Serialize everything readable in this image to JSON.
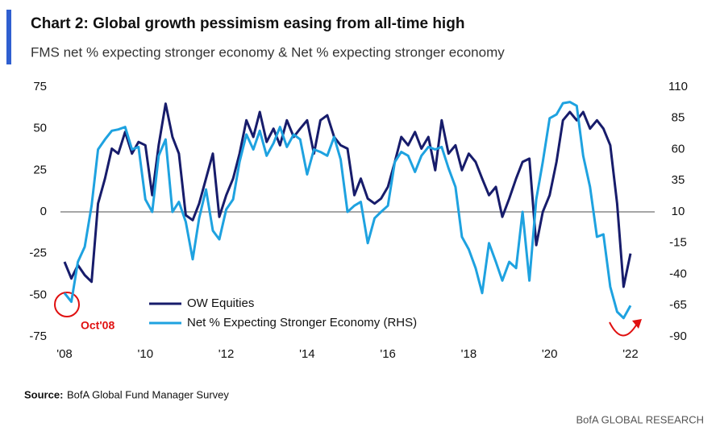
{
  "chart_data": {
    "type": "line",
    "title": "Chart 2: Global growth pessimism easing from all-time high",
    "subtitle": "FMS net % expecting stronger economy & Net % expecting stronger economy",
    "x": [
      2008.0,
      2008.17,
      2008.33,
      2008.5,
      2008.67,
      2008.83,
      2009.0,
      2009.17,
      2009.33,
      2009.5,
      2009.67,
      2009.83,
      2010.0,
      2010.17,
      2010.33,
      2010.5,
      2010.67,
      2010.83,
      2011.0,
      2011.17,
      2011.33,
      2011.5,
      2011.67,
      2011.83,
      2012.0,
      2012.17,
      2012.33,
      2012.5,
      2012.67,
      2012.83,
      2013.0,
      2013.17,
      2013.33,
      2013.5,
      2013.67,
      2013.83,
      2014.0,
      2014.17,
      2014.33,
      2014.5,
      2014.67,
      2014.83,
      2015.0,
      2015.17,
      2015.33,
      2015.5,
      2015.67,
      2015.83,
      2016.0,
      2016.17,
      2016.33,
      2016.5,
      2016.67,
      2016.83,
      2017.0,
      2017.17,
      2017.33,
      2017.5,
      2017.67,
      2017.83,
      2018.0,
      2018.17,
      2018.33,
      2018.5,
      2018.67,
      2018.83,
      2019.0,
      2019.17,
      2019.33,
      2019.5,
      2019.67,
      2019.83,
      2020.0,
      2020.17,
      2020.33,
      2020.5,
      2020.67,
      2020.83,
      2021.0,
      2021.17,
      2021.33,
      2021.5,
      2021.67,
      2021.83,
      2022.0
    ],
    "series": [
      {
        "name": "OW Equities",
        "color": "#171c6b",
        "values": [
          -30,
          -40,
          -32,
          -38,
          -42,
          5,
          20,
          38,
          35,
          48,
          35,
          42,
          40,
          10,
          40,
          65,
          45,
          35,
          -2,
          -5,
          5,
          20,
          35,
          -3,
          10,
          20,
          35,
          55,
          45,
          60,
          42,
          50,
          40,
          55,
          45,
          50,
          55,
          35,
          55,
          58,
          45,
          40,
          38,
          10,
          20,
          8,
          5,
          8,
          15,
          30,
          45,
          40,
          48,
          38,
          45,
          25,
          55,
          35,
          40,
          25,
          35,
          30,
          20,
          10,
          15,
          -3,
          8,
          20,
          30,
          32,
          -20,
          0,
          10,
          30,
          55,
          60,
          55,
          60,
          50,
          55,
          50,
          40,
          5,
          -45,
          -25
        ]
      },
      {
        "name": "Net % Expecting Stronger Economy (RHS)",
        "color": "#1ea2e0",
        "axis": "y2",
        "values": [
          -55,
          -62,
          -30,
          -18,
          15,
          60,
          68,
          75,
          76,
          78,
          60,
          62,
          20,
          10,
          55,
          68,
          10,
          18,
          2,
          -28,
          5,
          28,
          -5,
          -12,
          12,
          20,
          50,
          72,
          60,
          75,
          55,
          65,
          78,
          62,
          72,
          68,
          40,
          60,
          58,
          55,
          70,
          52,
          10,
          15,
          18,
          -15,
          5,
          10,
          15,
          50,
          58,
          55,
          42,
          55,
          62,
          60,
          62,
          45,
          30,
          -10,
          -20,
          -35,
          -55,
          -15,
          -30,
          -45,
          -30,
          -35,
          10,
          -45,
          20,
          50,
          85,
          88,
          97,
          98,
          95,
          55,
          30,
          -10,
          -8,
          -50,
          -70,
          -75,
          -65
        ]
      }
    ],
    "xlim": [
      2007.9,
      2022.2
    ],
    "xticks": [
      {
        "value": 2008,
        "label": "'08"
      },
      {
        "value": 2010,
        "label": "'10"
      },
      {
        "value": 2012,
        "label": "'12"
      },
      {
        "value": 2014,
        "label": "'14"
      },
      {
        "value": 2016,
        "label": "'16"
      },
      {
        "value": 2018,
        "label": "'18"
      },
      {
        "value": 2020,
        "label": "'20"
      },
      {
        "value": 2022,
        "label": "'22"
      }
    ],
    "ylim": [
      -75,
      75
    ],
    "yticks": [
      -75,
      -50,
      -25,
      0,
      25,
      50,
      75
    ],
    "y2lim": [
      -90,
      110
    ],
    "y2ticks": [
      -90,
      -65,
      -40,
      -15,
      10,
      35,
      60,
      85,
      110
    ],
    "zero_line": 0,
    "annotation": "Oct'08",
    "source_label": "Source:",
    "source": "BofA Global Fund Manager Survey",
    "footer": "BofA GLOBAL RESEARCH"
  }
}
